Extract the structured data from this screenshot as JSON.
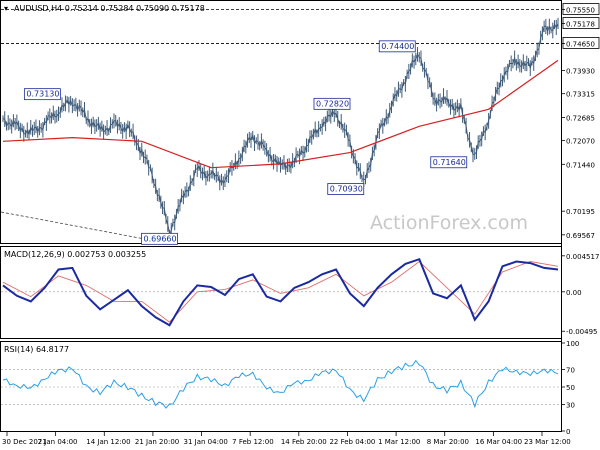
{
  "chart_data": [
    {
      "type": "line",
      "panel": "price",
      "title": "AUDUSD,H4",
      "ohlc": [
        "0.75214",
        "0.75284",
        "0.75090",
        "0.75178"
      ],
      "ylim": [
        0.6935,
        0.7575
      ],
      "y_ticks": [
        "0.75550",
        "0.75178",
        "0.74650",
        "0.73930",
        "0.73315",
        "0.72685",
        "0.72070",
        "0.71440",
        "0.70195",
        "0.69567"
      ],
      "series": [
        {
          "x": [
            0,
            4,
            8,
            12,
            16,
            20,
            24,
            28,
            32,
            36,
            40,
            44,
            48,
            52,
            56,
            60,
            64,
            68,
            72,
            76,
            80,
            84,
            88,
            92,
            96,
            100,
            104,
            108,
            112,
            116,
            120,
            124,
            128,
            132,
            136,
            140,
            144,
            148,
            152,
            156,
            160
          ],
          "values": [
            0.7265,
            0.7245,
            0.7228,
            0.7252,
            0.7285,
            0.7313,
            0.727,
            0.7235,
            0.725,
            0.724,
            0.718,
            0.709,
            0.6966,
            0.706,
            0.713,
            0.7115,
            0.71,
            0.716,
            0.722,
            0.718,
            0.714,
            0.715,
            0.72,
            0.725,
            0.7282,
            0.72,
            0.7093,
            0.722,
            0.73,
            0.737,
            0.744,
            0.732,
            0.731,
            0.729,
            0.7164,
            0.7265,
            0.738,
            0.742,
            0.74,
            0.75,
            0.7518
          ]
        },
        {
          "name": "MA",
          "x": [
            0,
            20,
            40,
            60,
            80,
            100,
            120,
            140,
            160
          ],
          "values": [
            0.7205,
            0.7215,
            0.7205,
            0.7135,
            0.7145,
            0.7175,
            0.7245,
            0.729,
            0.742
          ]
        }
      ],
      "annotations": [
        "0.73130",
        "0.69660",
        "0.72820",
        "0.70930",
        "0.74400",
        "0.71640"
      ],
      "levels": [
        0.7555,
        0.7465
      ],
      "xlabels": [
        "30 Dec 2021",
        "7 Jan 04:00",
        "14 Jan 12:00",
        "21 Jan 20:00",
        "31 Jan 04:00",
        "7 Feb 12:00",
        "14 Feb 20:00",
        "22 Feb 04:00",
        "1 Mar 12:00",
        "8 Mar 20:00",
        "16 Mar 04:00",
        "23 Mar 12:00"
      ],
      "watermark": "ActionForex.com"
    },
    {
      "type": "line",
      "panel": "macd",
      "title": "MACD(12,26,9) 0.002753 0.003255",
      "ylim": [
        -0.0058,
        0.0055
      ],
      "y_ticks": [
        "0.004517",
        "0.00",
        "-0.00495"
      ],
      "series": [
        {
          "name": "MACD",
          "x": [
            0,
            4,
            8,
            12,
            16,
            20,
            24,
            28,
            32,
            36,
            40,
            44,
            48,
            52,
            56,
            60,
            64,
            68,
            72,
            76,
            80,
            84,
            88,
            92,
            96,
            100,
            104,
            108,
            112,
            116,
            120,
            124,
            128,
            132,
            136,
            140,
            144,
            148,
            152,
            156,
            160
          ],
          "values": [
            0.0008,
            -0.0005,
            -0.0012,
            0.0005,
            0.0028,
            0.003,
            -0.0005,
            -0.0022,
            -0.001,
            0.0002,
            -0.0018,
            -0.0032,
            -0.0042,
            -0.0012,
            0.0008,
            0.0006,
            -0.0004,
            0.0016,
            0.0022,
            -0.0006,
            -0.0012,
            0.0005,
            0.0012,
            0.0022,
            0.0028,
            -0.0002,
            -0.0018,
            0.0005,
            0.0022,
            0.0035,
            0.0041,
            -0.0002,
            -0.0008,
            0.0008,
            -0.0035,
            -0.0012,
            0.0032,
            0.0038,
            0.0036,
            0.003,
            0.0028
          ]
        },
        {
          "name": "Signal",
          "x": [
            0,
            8,
            16,
            24,
            32,
            40,
            48,
            56,
            64,
            72,
            80,
            88,
            96,
            104,
            112,
            120,
            128,
            136,
            144,
            152,
            160
          ],
          "values": [
            0.0012,
            -0.0006,
            0.002,
            0.0008,
            -0.0012,
            -0.0012,
            -0.0038,
            0.0,
            0.0003,
            0.0015,
            -0.0002,
            0.0005,
            0.0022,
            -0.0005,
            0.0012,
            0.0038,
            0.0005,
            -0.0028,
            0.0025,
            0.0038,
            0.0032
          ]
        }
      ]
    },
    {
      "type": "line",
      "panel": "rsi",
      "title": "RSI(14) 64.8177",
      "ylim": [
        0,
        100
      ],
      "y_ticks": [
        "100",
        "70",
        "50",
        "30",
        "0"
      ],
      "series": [
        {
          "name": "RSI",
          "x": [
            0,
            4,
            8,
            12,
            16,
            20,
            24,
            28,
            32,
            36,
            40,
            44,
            48,
            52,
            56,
            60,
            64,
            68,
            72,
            76,
            80,
            84,
            88,
            92,
            96,
            100,
            104,
            108,
            112,
            116,
            120,
            124,
            128,
            132,
            136,
            140,
            144,
            148,
            152,
            156,
            160
          ],
          "values": [
            58,
            52,
            48,
            60,
            68,
            72,
            50,
            44,
            55,
            50,
            40,
            32,
            28,
            48,
            62,
            58,
            52,
            62,
            66,
            48,
            44,
            54,
            58,
            66,
            70,
            46,
            36,
            58,
            68,
            74,
            78,
            52,
            46,
            55,
            30,
            56,
            70,
            68,
            64,
            70,
            65
          ]
        }
      ]
    }
  ]
}
